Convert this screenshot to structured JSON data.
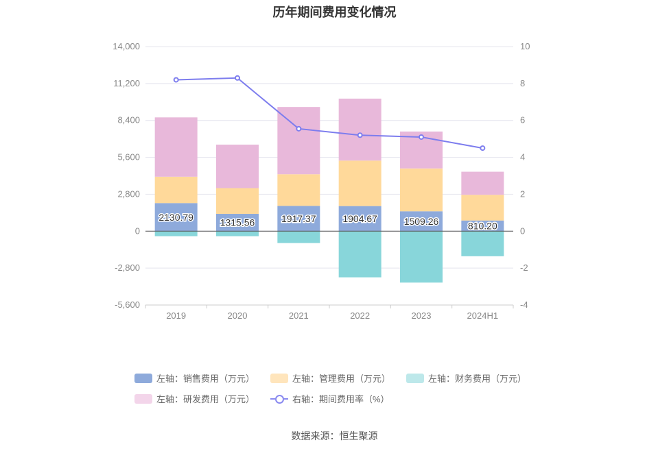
{
  "chart_data": {
    "type": "bar",
    "title": "历年期间费用变化情况",
    "categories": [
      "2019",
      "2020",
      "2021",
      "2022",
      "2023",
      "2024H1"
    ],
    "left_axis": {
      "ticks": [
        "14,000",
        "11,200",
        "8,400",
        "5,600",
        "2,800",
        "0",
        "-2,800",
        "-5,600"
      ],
      "ylim": [
        -5600,
        14000
      ]
    },
    "right_axis": {
      "ticks": [
        "10",
        "8",
        "6",
        "4",
        "2",
        "0",
        "-2",
        "-4"
      ],
      "ylim": [
        -4,
        10
      ]
    },
    "series": [
      {
        "name": "左轴：销售费用（万元）",
        "color": "#8eaadb",
        "values": [
          2130.79,
          1315.56,
          1917.37,
          1904.67,
          1509.26,
          810.2
        ],
        "labels": [
          "2130.79",
          "1315.56",
          "1917.37",
          "1904.67",
          "1509.26",
          "810.20"
        ]
      },
      {
        "name": "左轴：管理费用（万元）",
        "color": "#ffd99a",
        "values": [
          2000,
          1950,
          2400,
          3450,
          3250,
          1950
        ]
      },
      {
        "name": "左轴：财务费用（万元）",
        "color": "#88d6da",
        "values": [
          -380,
          -380,
          -900,
          -3500,
          -3900,
          -1900
        ]
      },
      {
        "name": "左轴：研发费用（万元）",
        "color": "#e8b8da",
        "values": [
          4500,
          3300,
          5100,
          4700,
          2800,
          1750
        ]
      }
    ],
    "line_series": {
      "name": "右轴：期间费用率（%）",
      "color": "#7d7dee",
      "values": [
        8.2,
        8.3,
        5.55,
        5.2,
        5.1,
        4.5
      ]
    },
    "source": "数据来源：恒生聚源"
  }
}
